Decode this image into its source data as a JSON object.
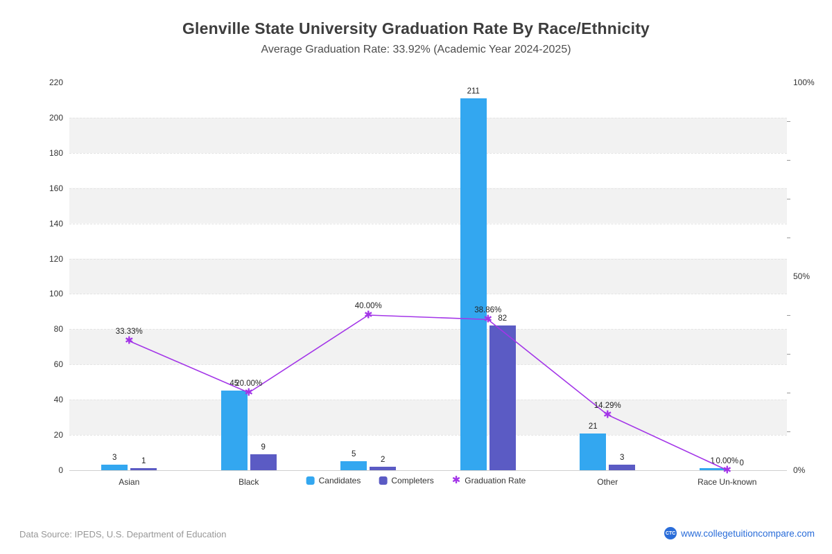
{
  "header": {
    "title": "Glenville State University Graduation Rate By Race/Ethnicity",
    "subtitle": "Average Graduation Rate: 33.92% (Academic Year 2024-2025)"
  },
  "chart_data": {
    "type": "combo-bar-line",
    "categories": [
      "Asian",
      "Black",
      "",
      "",
      "Other",
      "Race Un-known"
    ],
    "series": [
      {
        "name": "Candidates",
        "type": "bar",
        "color": "#33a7f0",
        "values": [
          3,
          45,
          5,
          211,
          21,
          1
        ],
        "labels": [
          "3",
          "45",
          "5",
          "211",
          "21",
          "1"
        ]
      },
      {
        "name": "Completers",
        "type": "bar",
        "color": "#5b5bc4",
        "values": [
          1,
          9,
          2,
          82,
          3,
          0
        ],
        "labels": [
          "1",
          "9",
          "2",
          "82",
          "3",
          "0"
        ]
      },
      {
        "name": "Graduation Rate",
        "type": "line",
        "color": "#a335e8",
        "axis": "right",
        "values": [
          33.33,
          20.0,
          40.0,
          38.86,
          14.29,
          0.0
        ],
        "labels": [
          "33.33%",
          "20.00%",
          "40.00%",
          "38.86%",
          "14.29%",
          "0.00%"
        ]
      }
    ],
    "left_axis": {
      "min": 0,
      "max": 220,
      "step": 20,
      "ticks": [
        0,
        20,
        40,
        60,
        80,
        100,
        120,
        140,
        160,
        180,
        200,
        220
      ]
    },
    "right_axis": {
      "min": 0,
      "max": 100,
      "ticks": [
        "100%",
        "50%",
        "0%"
      ],
      "tick_values": [
        100,
        50,
        0
      ],
      "minor_tick_step": 10
    },
    "legend": [
      "Candidates",
      "Completers",
      "Graduation Rate"
    ],
    "grid": "striped"
  },
  "footer": {
    "source": "Data Source: IPEDS, U.S. Department of Education",
    "logo": "CTC",
    "site": "www.collegetuitioncompare.com",
    "link_color": "#2a6dd9"
  }
}
